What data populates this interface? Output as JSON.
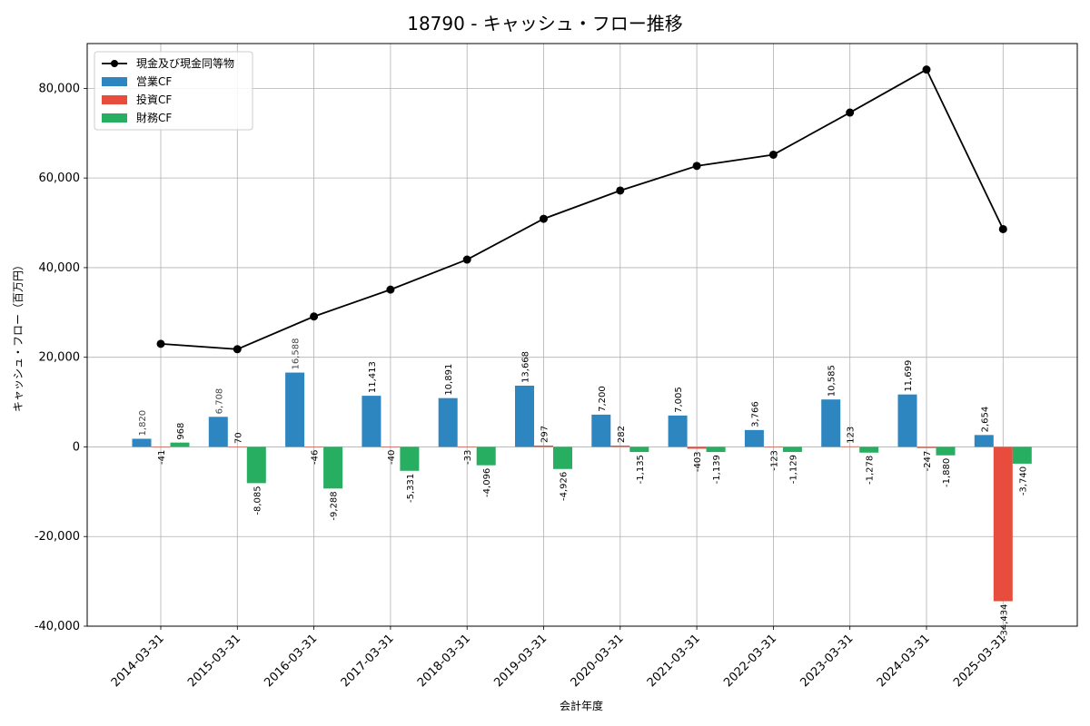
{
  "chart_data": {
    "type": "bar",
    "title": "18790 - キャッシュ・フロー推移",
    "xlabel": "会計年度",
    "ylabel": "キャッシュ・フロー（百万円）",
    "ylim": [
      -40000,
      90000
    ],
    "yticks": [
      -40000,
      -20000,
      0,
      20000,
      40000,
      60000,
      80000
    ],
    "ytick_labels": [
      "-40,000",
      "-20,000",
      "0",
      "20,000",
      "40,000",
      "60,000",
      "80,000"
    ],
    "grid": true,
    "legend_position": "top-left",
    "categories": [
      "2014-03-31",
      "2015-03-31",
      "2016-03-31",
      "2017-03-31",
      "2018-03-31",
      "2019-03-31",
      "2020-03-31",
      "2021-03-31",
      "2022-03-31",
      "2023-03-31",
      "2024-03-31",
      "2025-03-31"
    ],
    "series": [
      {
        "name": "営業CF",
        "kind": "bar",
        "color": "#2e86c1",
        "values": [
          1820,
          6708,
          16588,
          11413,
          10891,
          13668,
          7200,
          7005,
          3766,
          10585,
          11699,
          2654
        ],
        "labels": [
          "1,820",
          "6,708",
          "16,588",
          "11,413",
          "10,891",
          "13,668",
          "7,200",
          "7,005",
          "3,766",
          "10,585",
          "11,699",
          "2,654"
        ]
      },
      {
        "name": "投資CF",
        "kind": "bar",
        "color": "#e74c3c",
        "values": [
          -41,
          70,
          -46,
          -40,
          -33,
          297,
          282,
          -403,
          -123,
          123,
          -247,
          -34434
        ],
        "labels": [
          "-41",
          "70",
          "-46",
          "-40",
          "-33",
          "297",
          "282",
          "-403",
          "-123",
          "123",
          "-247",
          "-34,434"
        ]
      },
      {
        "name": "財務CF",
        "kind": "bar",
        "color": "#27ae60",
        "values": [
          968,
          -8085,
          -9288,
          -5331,
          -4096,
          -4926,
          -1135,
          -1139,
          -1129,
          -1278,
          -1880,
          -3740
        ],
        "labels": [
          "968",
          "-8,085",
          "-9,288",
          "-5,331",
          "-4,096",
          "-4,926",
          "-1,135",
          "-1,139",
          "-1,129",
          "-1,278",
          "-1,880",
          "-3,740"
        ]
      },
      {
        "name": "現金及び現金同等物",
        "kind": "line",
        "color": "#000000",
        "values": [
          23000,
          21800,
          29100,
          35100,
          41800,
          50900,
          57200,
          62700,
          65200,
          74600,
          84200,
          48600
        ]
      }
    ]
  }
}
